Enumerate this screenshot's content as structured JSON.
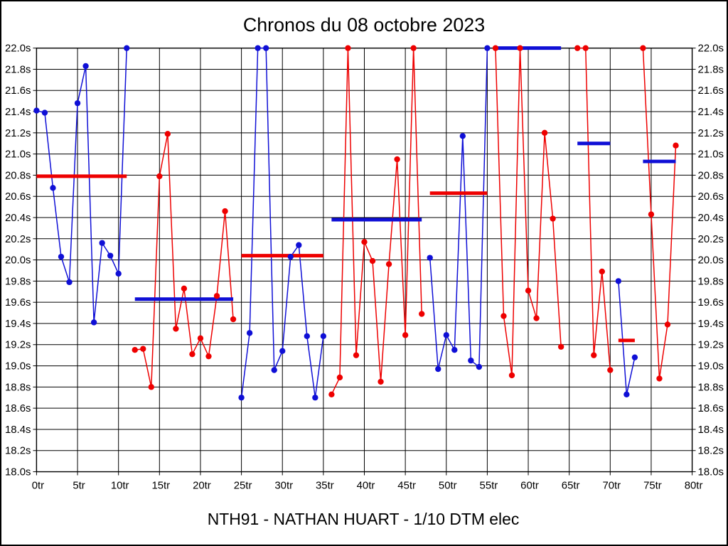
{
  "chart_data": {
    "type": "line",
    "title": "Chronos du 08 octobre 2023",
    "footer": "NTH91 - NATHAN HUART - 1/10 DTM elec",
    "x_unit": "tr",
    "y_unit": "s",
    "xlim": [
      0,
      80
    ],
    "ylim": [
      18.0,
      22.0
    ],
    "grid": true,
    "legend": "none",
    "colors": {
      "red": "#ee0000",
      "blue": "#0f0fd6",
      "grid": "#000000",
      "background": "#ffffff"
    },
    "x_ticks": [
      {
        "value": 0,
        "label": "0tr"
      },
      {
        "value": 5,
        "label": "5tr"
      },
      {
        "value": 10,
        "label": "10tr"
      },
      {
        "value": 15,
        "label": "15tr"
      },
      {
        "value": 20,
        "label": "20tr"
      },
      {
        "value": 25,
        "label": "25tr"
      },
      {
        "value": 30,
        "label": "30tr"
      },
      {
        "value": 35,
        "label": "35tr"
      },
      {
        "value": 40,
        "label": "40tr"
      },
      {
        "value": 45,
        "label": "45tr"
      },
      {
        "value": 50,
        "label": "50tr"
      },
      {
        "value": 55,
        "label": "55tr"
      },
      {
        "value": 60,
        "label": "60tr"
      },
      {
        "value": 65,
        "label": "65tr"
      },
      {
        "value": 70,
        "label": "70tr"
      },
      {
        "value": 75,
        "label": "75tr"
      },
      {
        "value": 80,
        "label": "80tr"
      }
    ],
    "y_ticks": [
      {
        "value": 18.0,
        "label": "18.0s"
      },
      {
        "value": 18.2,
        "label": "18.2s"
      },
      {
        "value": 18.4,
        "label": "18.4s"
      },
      {
        "value": 18.6,
        "label": "18.6s"
      },
      {
        "value": 18.8,
        "label": "18.8s"
      },
      {
        "value": 19.0,
        "label": "19.0s"
      },
      {
        "value": 19.2,
        "label": "19.2s"
      },
      {
        "value": 19.4,
        "label": "19.4s"
      },
      {
        "value": 19.6,
        "label": "19.6s"
      },
      {
        "value": 19.8,
        "label": "19.8s"
      },
      {
        "value": 20.0,
        "label": "20.0s"
      },
      {
        "value": 20.2,
        "label": "20.2s"
      },
      {
        "value": 20.4,
        "label": "20.4s"
      },
      {
        "value": 20.6,
        "label": "20.6s"
      },
      {
        "value": 20.8,
        "label": "20.8s"
      },
      {
        "value": 21.0,
        "label": "21.0s"
      },
      {
        "value": 21.2,
        "label": "21.2s"
      },
      {
        "value": 21.4,
        "label": "21.4s"
      },
      {
        "value": 21.6,
        "label": "21.6s"
      },
      {
        "value": 21.8,
        "label": "21.8s"
      },
      {
        "value": 22.0,
        "label": "22.0s"
      }
    ],
    "segments": [
      {
        "name": "run-1",
        "color": "blue",
        "start_lap": 0,
        "times": [
          21.41,
          21.39,
          20.68,
          20.03,
          19.79,
          21.48,
          21.83,
          19.41,
          20.16,
          20.04,
          19.87,
          22.0
        ],
        "avg": 20.79,
        "avg_color": "red"
      },
      {
        "name": "run-2",
        "color": "red",
        "start_lap": 12,
        "times": [
          19.15,
          19.16,
          18.8,
          20.79,
          21.19,
          19.35,
          19.73,
          19.11,
          19.26,
          19.09,
          19.66,
          20.46,
          19.44
        ],
        "avg": 19.63,
        "avg_color": "blue"
      },
      {
        "name": "run-3",
        "color": "blue",
        "start_lap": 25,
        "times": [
          18.7,
          19.31,
          22.0,
          22.0,
          18.96,
          19.14,
          20.03,
          20.14,
          19.28,
          18.7,
          19.28
        ],
        "avg": 20.04,
        "avg_color": "red"
      },
      {
        "name": "run-4",
        "color": "red",
        "start_lap": 36,
        "times": [
          18.73,
          18.89,
          22.0,
          19.1,
          20.17,
          19.99,
          18.85,
          19.96,
          20.95,
          19.29,
          22.0,
          19.49
        ],
        "avg": 20.38,
        "avg_color": "blue"
      },
      {
        "name": "run-5",
        "color": "blue",
        "start_lap": 48,
        "times": [
          20.02,
          18.97,
          19.29,
          19.15,
          21.17,
          19.05,
          18.99,
          22.0
        ],
        "avg": 20.63,
        "avg_color": "red"
      },
      {
        "name": "run-6",
        "color": "red",
        "start_lap": 56,
        "times": [
          22.0,
          19.47,
          18.91,
          22.0,
          19.71,
          19.45,
          21.2,
          20.39,
          19.18
        ],
        "avg": 22.0,
        "avg_color": "blue"
      },
      {
        "name": "run-7",
        "color": "red",
        "start_lap": 66,
        "times": [
          22.0,
          22.0,
          19.1,
          19.89,
          18.96
        ],
        "avg": 21.1,
        "avg_color": "blue"
      },
      {
        "name": "run-8",
        "color": "blue",
        "start_lap": 71,
        "times": [
          19.8,
          18.73,
          19.08
        ],
        "avg": 19.24,
        "avg_color": "red"
      },
      {
        "name": "run-9",
        "color": "red",
        "start_lap": 74,
        "times": [
          22.0,
          20.43,
          18.88,
          19.39,
          21.08
        ],
        "avg": 20.93,
        "avg_color": "blue"
      }
    ]
  }
}
